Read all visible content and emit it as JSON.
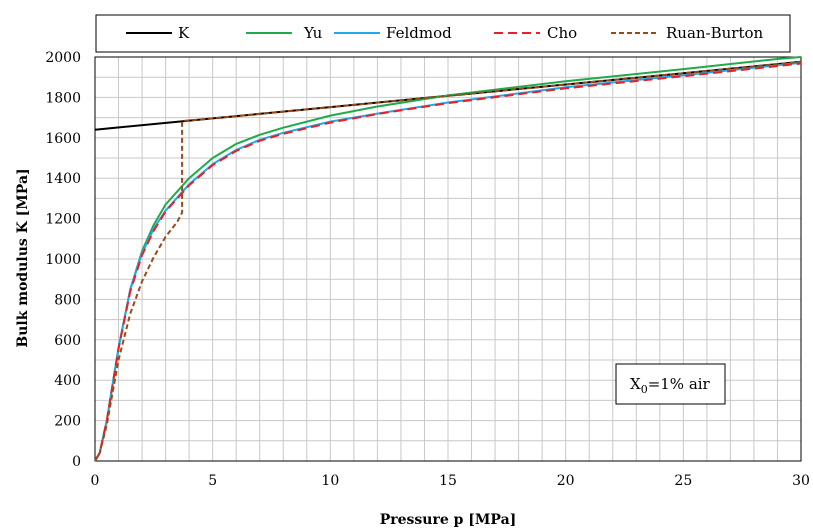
{
  "chart_data": {
    "type": "line",
    "xlabel": "Pressure p [MPa]",
    "ylabel": "Bulk modulus K [MPa]",
    "xlim": [
      0,
      30
    ],
    "ylim": [
      0,
      2000
    ],
    "x_ticks": [
      0,
      5,
      10,
      15,
      20,
      25,
      30
    ],
    "y_ticks": [
      0,
      200,
      400,
      600,
      800,
      1000,
      1200,
      1400,
      1600,
      1800,
      2000
    ],
    "grid": true,
    "legend_position": "top",
    "annotation": {
      "prefix": "X",
      "subscript": "0",
      "suffix": "=1% air"
    },
    "series": [
      {
        "name": "K",
        "color": "#000000",
        "dash": "solid",
        "x": [
          0,
          5,
          10,
          15,
          20,
          25,
          30
        ],
        "y": [
          1640,
          1696,
          1752,
          1808,
          1864,
          1920,
          1976
        ]
      },
      {
        "name": "Yu",
        "color": "#22aa4a",
        "dash": "solid",
        "x": [
          0,
          0.2,
          0.5,
          1,
          1.5,
          2,
          2.5,
          3,
          4,
          5,
          6,
          7,
          8,
          10,
          12,
          15,
          20,
          25,
          29,
          30
        ],
        "y": [
          0,
          40,
          200,
          560,
          850,
          1040,
          1170,
          1270,
          1400,
          1500,
          1570,
          1615,
          1650,
          1710,
          1755,
          1810,
          1880,
          1940,
          1990,
          2000
        ]
      },
      {
        "name": "Feldmod",
        "color": "#1eaaea",
        "dash": "solid",
        "x": [
          0,
          0.2,
          0.5,
          1,
          1.5,
          2,
          2.5,
          3,
          4,
          5,
          6,
          7,
          8,
          10,
          12,
          15,
          20,
          25,
          30
        ],
        "y": [
          0,
          40,
          200,
          560,
          850,
          1030,
          1150,
          1240,
          1370,
          1470,
          1540,
          1590,
          1625,
          1680,
          1720,
          1775,
          1850,
          1910,
          1972
        ]
      },
      {
        "name": "Cho",
        "color": "#e8202a",
        "dash": "dashed",
        "x": [
          0,
          0.2,
          0.5,
          1,
          1.5,
          2,
          2.5,
          3,
          4,
          5,
          6,
          7,
          8,
          10,
          12,
          15,
          20,
          25,
          30
        ],
        "y": [
          0,
          40,
          200,
          555,
          840,
          1020,
          1140,
          1235,
          1365,
          1465,
          1535,
          1585,
          1620,
          1675,
          1718,
          1772,
          1845,
          1905,
          1968
        ]
      },
      {
        "name": "Ruan-Burton",
        "color": "#9a4a14",
        "dash": "dashed",
        "x": [
          0,
          0.2,
          0.5,
          1,
          1.5,
          2,
          2.5,
          3,
          3.5,
          3.7,
          3.7,
          5,
          10,
          15,
          20,
          25,
          30
        ],
        "y": [
          0,
          40,
          180,
          500,
          730,
          890,
          1010,
          1110,
          1185,
          1230,
          1683,
          1696,
          1752,
          1808,
          1864,
          1920,
          1976
        ]
      }
    ]
  }
}
